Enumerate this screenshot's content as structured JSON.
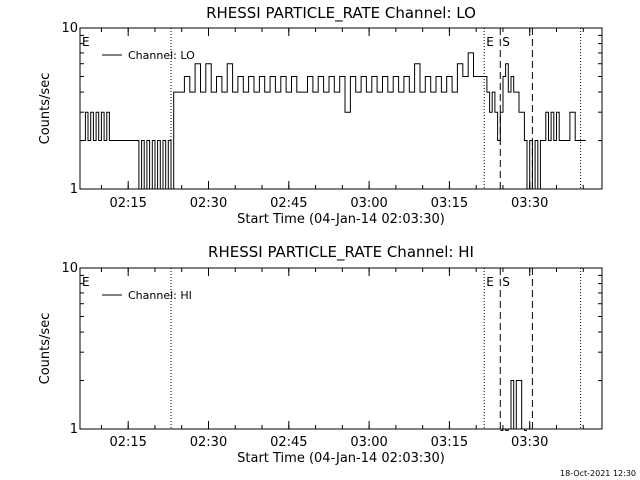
{
  "footer": {
    "timestamp": "18-Oct-2021 12:30"
  },
  "chart_data": [
    {
      "type": "line",
      "title": "RHESSI PARTICLE_RATE Channel: LO",
      "xlabel": "Start Time (04-Jan-14 02:03:30)",
      "ylabel": "Counts/sec",
      "yscale": "log",
      "ylim": [
        1,
        10
      ],
      "yticks": [
        1,
        10
      ],
      "ytick_labels": [
        "1",
        "10"
      ],
      "xlim_minutes": [
        2.5,
        100.0
      ],
      "xticks_minutes": [
        11.5,
        26.5,
        41.5,
        56.5,
        71.5,
        86.5
      ],
      "xtick_labels": [
        "02:15",
        "02:30",
        "02:45",
        "03:00",
        "03:15",
        "03:30"
      ],
      "legend": {
        "position": "top-left",
        "entries": [
          "Channel: LO"
        ]
      },
      "markers": [
        {
          "minute": 2.5,
          "style": "dotted",
          "label": "E"
        },
        {
          "minute": 19.5,
          "style": "dotted",
          "label": ""
        },
        {
          "minute": 78.0,
          "style": "dotted",
          "label": "E"
        },
        {
          "minute": 81.0,
          "style": "dashed",
          "label": "S"
        },
        {
          "minute": 87.0,
          "style": "dashed",
          "label": ""
        },
        {
          "minute": 96.0,
          "style": "dotted",
          "label": ""
        }
      ],
      "series": [
        {
          "name": "Channel: LO",
          "color": "#000000",
          "x": [
            2.5,
            3.5,
            4.0,
            4.5,
            5.0,
            5.5,
            6.0,
            6.5,
            7.0,
            7.5,
            8.0,
            8.5,
            9.0,
            9.5,
            10.0,
            10.5,
            11.0,
            11.5,
            12.0,
            12.5,
            13.0,
            13.5,
            14.0,
            14.5,
            15.0,
            15.5,
            16.0,
            16.5,
            17.0,
            17.5,
            18.0,
            18.5,
            19.0,
            19.5,
            20.0,
            21.0,
            22.0,
            23.0,
            24.0,
            25.0,
            26.0,
            27.0,
            28.0,
            29.0,
            30.0,
            31.0,
            32.0,
            33.0,
            34.0,
            35.0,
            36.0,
            37.0,
            38.0,
            39.0,
            40.0,
            41.0,
            42.0,
            43.0,
            44.0,
            45.0,
            46.0,
            47.0,
            48.0,
            49.0,
            50.0,
            51.0,
            52.0,
            53.0,
            54.0,
            55.0,
            56.0,
            57.0,
            58.0,
            59.0,
            60.0,
            61.0,
            62.0,
            63.0,
            64.0,
            65.0,
            66.0,
            67.0,
            68.0,
            69.0,
            70.0,
            71.0,
            72.0,
            73.0,
            74.0,
            75.0,
            76.0,
            77.0,
            78.0,
            78.5,
            79.0,
            79.5,
            80.0,
            80.5,
            81.0,
            81.5,
            82.0,
            82.5,
            83.0,
            83.5,
            84.0,
            84.5,
            85.0,
            85.5,
            86.0,
            86.5,
            87.0,
            87.5,
            88.0,
            88.5,
            89.0,
            89.5,
            90.0,
            90.5,
            91.0,
            91.5,
            92.0,
            92.5,
            93.0,
            94.0,
            95.0,
            96.0,
            97.0
          ],
          "values": [
            2,
            3,
            2,
            3,
            2,
            3,
            2,
            3,
            2,
            3,
            2,
            2,
            2,
            2,
            2,
            2,
            2,
            2,
            2,
            2,
            2,
            1,
            2,
            1,
            2,
            1,
            2,
            1,
            2,
            1,
            2,
            1,
            2,
            1,
            4,
            4,
            5,
            4,
            6,
            4,
            6,
            4,
            5,
            4,
            6,
            4,
            5,
            4,
            5,
            4,
            5,
            4,
            5,
            4,
            5,
            4,
            5,
            4,
            4,
            5,
            4,
            5,
            4,
            5,
            4,
            5,
            3,
            5,
            4,
            5,
            4,
            5,
            4,
            5,
            4,
            5,
            4,
            5,
            4,
            6,
            4,
            5,
            4,
            5,
            4,
            5,
            4,
            6,
            5,
            7,
            5,
            5,
            5,
            4,
            3,
            4,
            3,
            2,
            3,
            5,
            6,
            4,
            5,
            4,
            4,
            3,
            3,
            2,
            1,
            2,
            1,
            2,
            1,
            2,
            2,
            3,
            2,
            3,
            2,
            3,
            2,
            2,
            2,
            3,
            2,
            2,
            2
          ]
        }
      ]
    },
    {
      "type": "line",
      "title": "RHESSI PARTICLE_RATE Channel: HI",
      "xlabel": "Start Time (04-Jan-14 02:03:30)",
      "ylabel": "Counts/sec",
      "yscale": "log",
      "ylim": [
        1,
        10
      ],
      "yticks": [
        1,
        10
      ],
      "ytick_labels": [
        "1",
        "10"
      ],
      "xlim_minutes": [
        2.5,
        100.0
      ],
      "xticks_minutes": [
        11.5,
        26.5,
        41.5,
        56.5,
        71.5,
        86.5
      ],
      "xtick_labels": [
        "02:15",
        "02:30",
        "02:45",
        "03:00",
        "03:15",
        "03:30"
      ],
      "legend": {
        "position": "top-left",
        "entries": [
          "Channel: HI"
        ]
      },
      "markers": [
        {
          "minute": 2.5,
          "style": "dotted",
          "label": "E"
        },
        {
          "minute": 19.5,
          "style": "dotted",
          "label": ""
        },
        {
          "minute": 78.0,
          "style": "dotted",
          "label": "E"
        },
        {
          "minute": 81.0,
          "style": "dashed",
          "label": "S"
        },
        {
          "minute": 87.0,
          "style": "dashed",
          "label": ""
        },
        {
          "minute": 96.0,
          "style": "dotted",
          "label": ""
        }
      ],
      "series": [
        {
          "name": "Channel: HI",
          "color": "#000000",
          "x": [
            81.0,
            81.5,
            82.0,
            82.5,
            83.0,
            83.5,
            84.0,
            84.5,
            85.0,
            85.5,
            86.0
          ],
          "values": [
            0,
            1,
            0,
            1,
            2,
            1,
            2,
            2,
            1,
            0,
            0
          ]
        }
      ]
    }
  ]
}
